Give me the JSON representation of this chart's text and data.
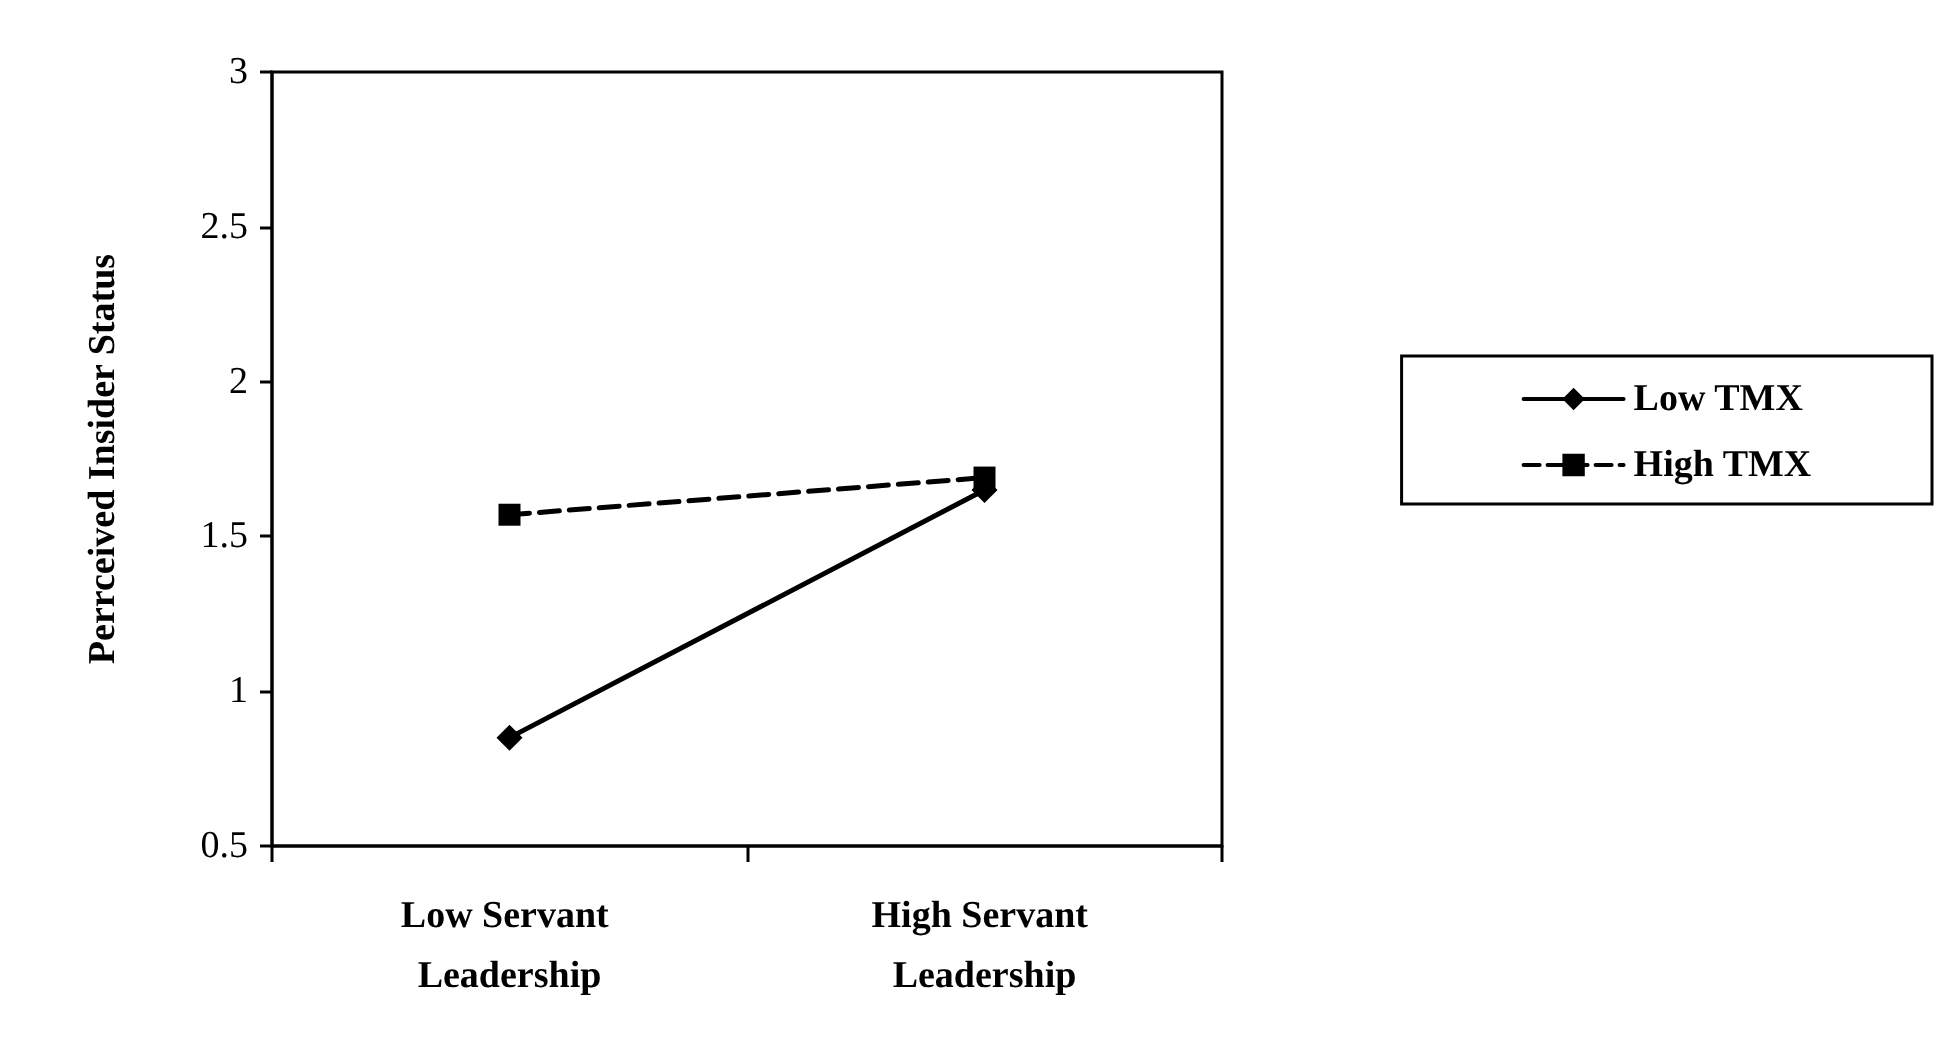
{
  "chart_data": {
    "type": "line",
    "ylabel": "Perrceived Insider Status",
    "categories": [
      "Low Servant Leadership",
      "High Servant Leadership"
    ],
    "series": [
      {
        "name": "Low TMX",
        "color": "#000000",
        "values": [
          0.85,
          1.65
        ],
        "marker": "diamond",
        "line_style": "solid"
      },
      {
        "name": "High TMX",
        "color": "#000000",
        "values": [
          1.57,
          1.69
        ],
        "marker": "square",
        "line_style": "dashed"
      }
    ],
    "ylim": [
      0.5,
      3
    ],
    "yticks": [
      0.5,
      1,
      1.5,
      2,
      2.5,
      3
    ],
    "grid": false,
    "legend": "right"
  }
}
